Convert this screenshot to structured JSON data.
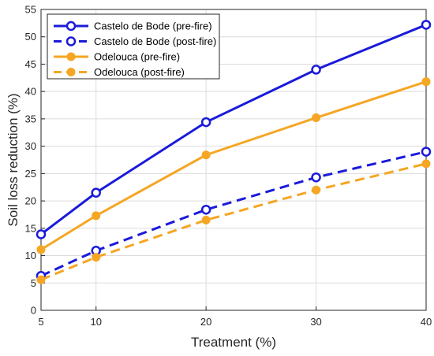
{
  "chart_data": {
    "type": "line",
    "xlabel": "Treatment (%)",
    "ylabel": "Soil loss reduction (%)",
    "x": [
      5,
      10,
      20,
      30,
      40
    ],
    "xticks": [
      5,
      10,
      20,
      30,
      40
    ],
    "xlim": [
      5,
      40
    ],
    "ylim": [
      0,
      55
    ],
    "yticks": [
      0,
      5,
      10,
      15,
      20,
      25,
      30,
      35,
      40,
      45,
      50,
      55
    ],
    "grid": true,
    "legend_position": "top-left",
    "series": [
      {
        "name": "Castelo de Bode (pre-fire)",
        "values": [
          13.9,
          21.5,
          34.4,
          44.0,
          52.2
        ],
        "color": "#1a1adb",
        "dashed": false,
        "marker": "open-circle"
      },
      {
        "name": "Castelo de Bode (post-fire)",
        "values": [
          6.3,
          10.9,
          18.4,
          24.3,
          29.0
        ],
        "color": "#1a1adb",
        "dashed": true,
        "marker": "open-circle"
      },
      {
        "name": "Odelouca (pre-fire)",
        "values": [
          11.1,
          17.3,
          28.4,
          35.2,
          41.8
        ],
        "color": "#f5a623",
        "dashed": false,
        "marker": "filled-circle"
      },
      {
        "name": "Odelouca (post-fire)",
        "values": [
          5.6,
          9.7,
          16.5,
          22.0,
          26.8
        ],
        "color": "#f5a623",
        "dashed": true,
        "marker": "filled-circle"
      }
    ]
  }
}
